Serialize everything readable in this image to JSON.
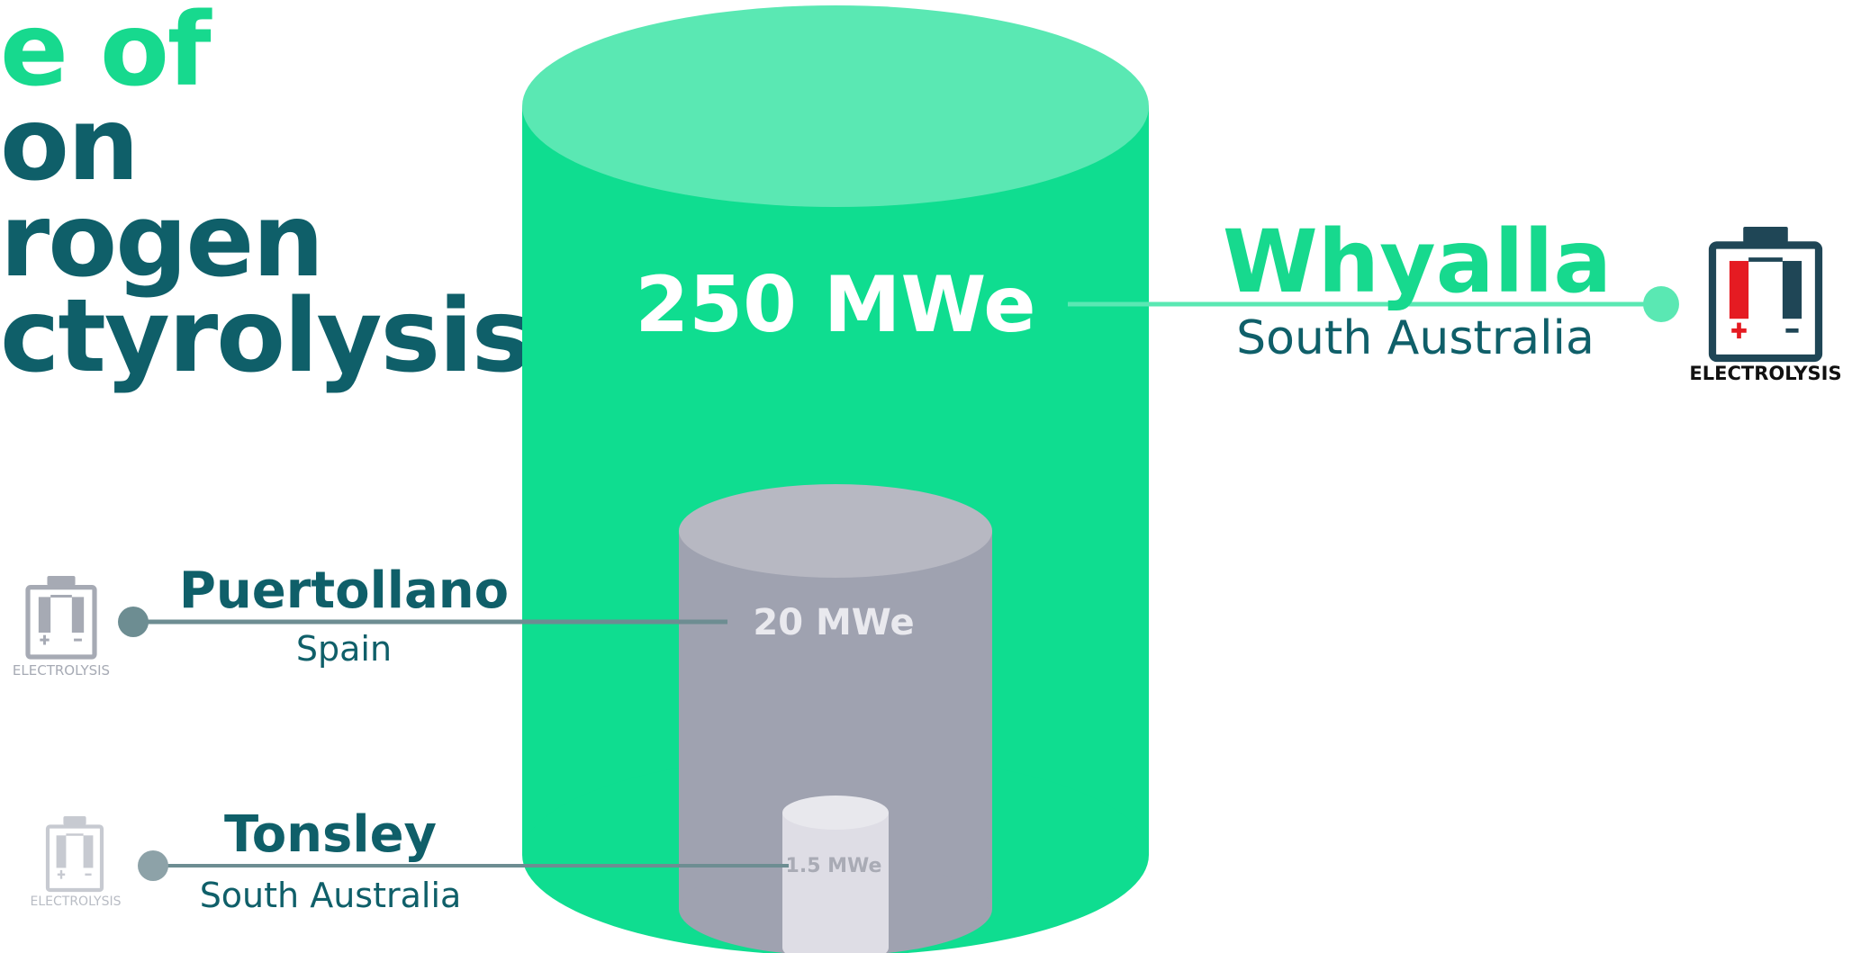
{
  "title": {
    "lines": [
      "e of",
      "on",
      "rogen",
      "ctyrolysis"
    ]
  },
  "colors": {
    "accent_green": "#17d98e",
    "light_green": "#5ae8b3",
    "cylinder_green": "#0fdd90",
    "teal_dark": "#0f5f69",
    "grey_cylinder_top": "#b7b8c2",
    "grey_cylinder_body": "#9fa2b0",
    "small_cylinder_top": "#e8e8ed",
    "small_cylinder_body": "#dedde5",
    "line_grey": "#6d8d92",
    "icon_grey": "#a6aab4",
    "battery_red": "#e51b22",
    "battery_dark": "#1f4656"
  },
  "chart_data": {
    "type": "bar",
    "categories": [
      "Whyalla",
      "Puertollano",
      "Tonsley"
    ],
    "values": [
      250,
      20,
      1.5
    ],
    "value_labels": [
      "250 MWe",
      "20 MWe",
      "1.5 MWe"
    ],
    "unit": "MWe",
    "locations": [
      "South Australia",
      "Spain",
      "South Australia"
    ],
    "icon_label": "ELECTROLYSIS"
  },
  "icons": {
    "battery": "electrolysis-battery-icon"
  }
}
